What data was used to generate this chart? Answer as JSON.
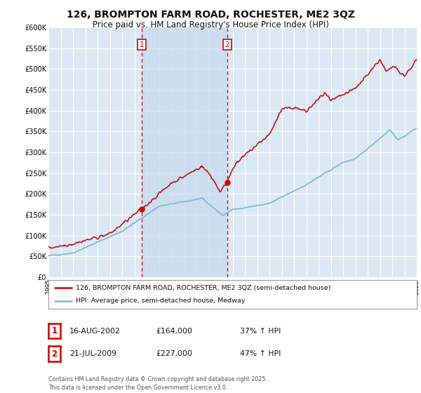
{
  "title": "126, BROMPTON FARM ROAD, ROCHESTER, ME2 3QZ",
  "subtitle": "Price paid vs. HM Land Registry's House Price Index (HPI)",
  "title_fontsize": 10,
  "subtitle_fontsize": 8.5,
  "background_color": "#ffffff",
  "plot_bg_color": "#dce9f5",
  "shade_color": "#c5d9ed",
  "grid_color": "#ffffff",
  "red_color": "#cc0000",
  "blue_color": "#7fb8d8",
  "vline_color": "#cc0000",
  "ylim": [
    0,
    600000
  ],
  "yticks": [
    0,
    50000,
    100000,
    150000,
    200000,
    250000,
    300000,
    350000,
    400000,
    450000,
    500000,
    550000,
    600000
  ],
  "ytick_labels": [
    "£0",
    "£50K",
    "£100K",
    "£150K",
    "£200K",
    "£250K",
    "£300K",
    "£350K",
    "£400K",
    "£450K",
    "£500K",
    "£550K",
    "£600K"
  ],
  "xmin": 1995,
  "xmax": 2025,
  "vline1_x": 2002.62,
  "vline2_x": 2009.55,
  "marker1_red": [
    2002.62,
    164000
  ],
  "marker2_red": [
    2009.55,
    227000
  ],
  "legend_line1": "126, BROMPTON FARM ROAD, ROCHESTER, ME2 3QZ (semi-detached house)",
  "legend_line2": "HPI: Average price, semi-detached house, Medway",
  "annotation1_label": "1",
  "annotation1_date": "16-AUG-2002",
  "annotation1_price": "£164,000",
  "annotation1_hpi": "37% ↑ HPI",
  "annotation2_label": "2",
  "annotation2_date": "21-JUL-2009",
  "annotation2_price": "£227,000",
  "annotation2_hpi": "47% ↑ HPI",
  "footer": "Contains HM Land Registry data © Crown copyright and database right 2025.\nThis data is licensed under the Open Government Licence v3.0."
}
